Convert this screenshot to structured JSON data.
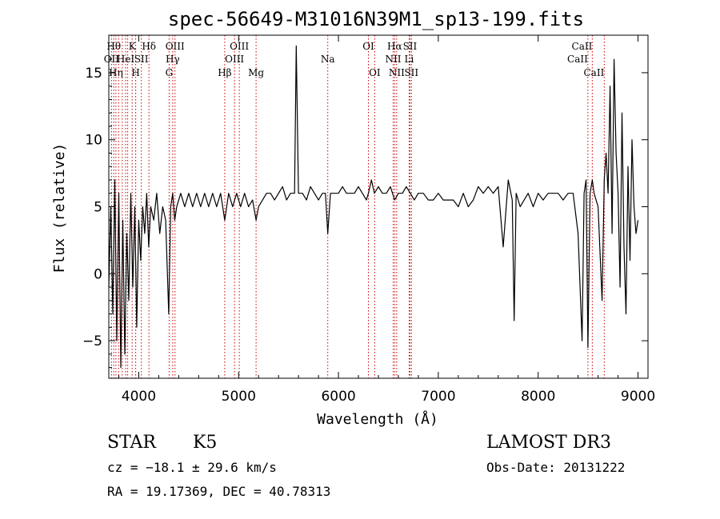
{
  "chart_data": {
    "type": "line",
    "title": "spec-56649-M31016N39M1_sp13-199.fits",
    "xlabel": "Wavelength (Å)",
    "ylabel": "Flux (relative)",
    "xlim": [
      3700,
      9100
    ],
    "ylim": [
      -7.8,
      17.8
    ],
    "x_ticks": [
      4000,
      5000,
      6000,
      7000,
      8000,
      9000
    ],
    "x_tick_labels": [
      "4000",
      "5000",
      "6000",
      "7000",
      "8000",
      "9000"
    ],
    "y_ticks": [
      -5,
      0,
      5,
      10,
      15
    ],
    "y_tick_labels": [
      "−5",
      "0",
      "5",
      "10",
      "15"
    ],
    "grid": false,
    "line_color": "#000000",
    "marker_color": "#cc0000",
    "series": [
      {
        "x": [
          3700,
          3720,
          3740,
          3760,
          3780,
          3800,
          3820,
          3840,
          3860,
          3880,
          3900,
          3920,
          3940,
          3960,
          3980,
          4000,
          4020,
          4040,
          4060,
          4080,
          4100,
          4120,
          4150,
          4180,
          4210,
          4240,
          4270,
          4300,
          4320,
          4340,
          4360,
          4380,
          4420,
          4460,
          4500,
          4540,
          4580,
          4620,
          4660,
          4700,
          4740,
          4780,
          4820,
          4861,
          4900,
          4940,
          4980,
          5020,
          5060,
          5100,
          5140,
          5175,
          5200,
          5240,
          5280,
          5320,
          5360,
          5400,
          5440,
          5480,
          5520,
          5560,
          5577,
          5600,
          5640,
          5680,
          5720,
          5760,
          5800,
          5840,
          5870,
          5893,
          5920,
          5960,
          6000,
          6040,
          6080,
          6120,
          6160,
          6200,
          6240,
          6280,
          6300,
          6330,
          6360,
          6400,
          6440,
          6480,
          6520,
          6563,
          6600,
          6640,
          6680,
          6720,
          6760,
          6800,
          6850,
          6900,
          6950,
          7000,
          7050,
          7100,
          7150,
          7200,
          7250,
          7300,
          7350,
          7400,
          7450,
          7500,
          7550,
          7600,
          7650,
          7700,
          7740,
          7760,
          7780,
          7820,
          7860,
          7900,
          7950,
          8000,
          8050,
          8100,
          8150,
          8200,
          8250,
          8300,
          8350,
          8400,
          8440,
          8460,
          8480,
          8498,
          8520,
          8542,
          8560,
          8600,
          8640,
          8662,
          8680,
          8700,
          8720,
          8740,
          8760,
          8780,
          8800,
          8820,
          8840,
          8860,
          8880,
          8900,
          8920,
          8940,
          8960,
          8980,
          9000
        ],
        "y": [
          -1,
          5,
          -3,
          7,
          -5,
          6,
          -7,
          4,
          -6,
          3,
          -2,
          6,
          -1,
          5,
          -4,
          4,
          1,
          5,
          3,
          6,
          2,
          5,
          4,
          6,
          3,
          5,
          4,
          -3,
          5,
          6,
          4,
          5,
          6,
          5,
          6,
          5,
          6,
          5,
          6,
          5,
          6,
          5,
          6,
          4,
          6,
          5,
          6,
          5,
          6,
          5,
          5.5,
          4,
          5,
          5.5,
          6,
          6,
          5.5,
          6,
          6.5,
          5.5,
          6,
          6,
          17,
          6,
          6,
          5.5,
          6.5,
          6,
          5.5,
          6,
          6,
          3,
          6,
          6,
          6,
          6.5,
          6,
          6,
          6,
          6.5,
          6,
          5.5,
          6,
          7,
          6,
          6.5,
          6,
          6,
          6.5,
          5.5,
          6,
          6,
          6.5,
          6,
          5.5,
          6,
          6,
          5.5,
          5.5,
          6,
          5.5,
          5.5,
          5.5,
          5,
          6,
          5,
          5.5,
          6.5,
          6,
          6.5,
          6,
          6.5,
          2,
          7,
          5.5,
          -3.5,
          6,
          5,
          5.5,
          6,
          5,
          6,
          5.5,
          6,
          6,
          6,
          5.5,
          6,
          6,
          3,
          -5,
          6,
          7,
          -5.5,
          6,
          7,
          6,
          5,
          -2,
          7,
          9,
          6,
          14,
          3,
          16,
          9,
          6,
          -1,
          12,
          2,
          -3,
          8,
          1,
          10,
          5,
          3,
          4
        ]
      }
    ],
    "line_markers": [
      {
        "x": 3727,
        "label": "OII",
        "row": 2,
        "align": "middle"
      },
      {
        "x": 3750,
        "label": "Hθ",
        "row": 1,
        "align": "middle"
      },
      {
        "x": 3771,
        "label": "Hη",
        "row": 3,
        "align": "middle"
      },
      {
        "x": 3798,
        "label": "",
        "row": 0,
        "align": "middle"
      },
      {
        "x": 3835,
        "label": "",
        "row": 0,
        "align": "middle"
      },
      {
        "x": 3869,
        "label": "HeI",
        "row": 2,
        "align": "middle"
      },
      {
        "x": 3889,
        "label": "",
        "row": 0,
        "align": "middle"
      },
      {
        "x": 3934,
        "label": "K",
        "row": 1,
        "align": "middle"
      },
      {
        "x": 3969,
        "label": "H",
        "row": 3,
        "align": "middle"
      },
      {
        "x": 4026,
        "label": "SII",
        "row": 2,
        "align": "middle"
      },
      {
        "x": 4102,
        "label": "Hδ",
        "row": 1,
        "align": "middle"
      },
      {
        "x": 4304,
        "label": "G",
        "row": 3,
        "align": "middle"
      },
      {
        "x": 4340,
        "label": "Hγ",
        "row": 2,
        "align": "middle"
      },
      {
        "x": 4363,
        "label": "OIII",
        "row": 1,
        "align": "middle"
      },
      {
        "x": 4861,
        "label": "Hβ",
        "row": 3,
        "align": "middle"
      },
      {
        "x": 4959,
        "label": "OIII",
        "row": 2,
        "align": "middle"
      },
      {
        "x": 5007,
        "label": "OIII",
        "row": 1,
        "align": "middle"
      },
      {
        "x": 5175,
        "label": "Mg",
        "row": 3,
        "align": "middle"
      },
      {
        "x": 5893,
        "label": "Na",
        "row": 2,
        "align": "middle"
      },
      {
        "x": 6300,
        "label": "OI",
        "row": 1,
        "align": "middle"
      },
      {
        "x": 6363,
        "label": "OI",
        "row": 3,
        "align": "middle"
      },
      {
        "x": 6548,
        "label": "NII",
        "row": 2,
        "align": "middle"
      },
      {
        "x": 6563,
        "label": "Hα",
        "row": 1,
        "align": "middle"
      },
      {
        "x": 6583,
        "label": "NII",
        "row": 3,
        "align": "middle"
      },
      {
        "x": 6708,
        "label": "Li",
        "row": 2,
        "align": "middle"
      },
      {
        "x": 6716,
        "label": "SII",
        "row": 1,
        "align": "middle"
      },
      {
        "x": 6731,
        "label": "SII",
        "row": 3,
        "align": "middle"
      },
      {
        "x": 8498,
        "label": "CaII",
        "row": 2,
        "align": "end"
      },
      {
        "x": 8542,
        "label": "CaII",
        "row": 1,
        "align": "end"
      },
      {
        "x": 8662,
        "label": "CaII",
        "row": 3,
        "align": "end"
      }
    ]
  },
  "info": {
    "class": "STAR",
    "subclass": "K5",
    "survey": "LAMOST DR3",
    "cz": "cz = −18.1 ± 29.6 km/s",
    "obs_date": "Obs-Date: 20131222",
    "coords": "RA =  19.17369, DEC =  40.78313"
  }
}
